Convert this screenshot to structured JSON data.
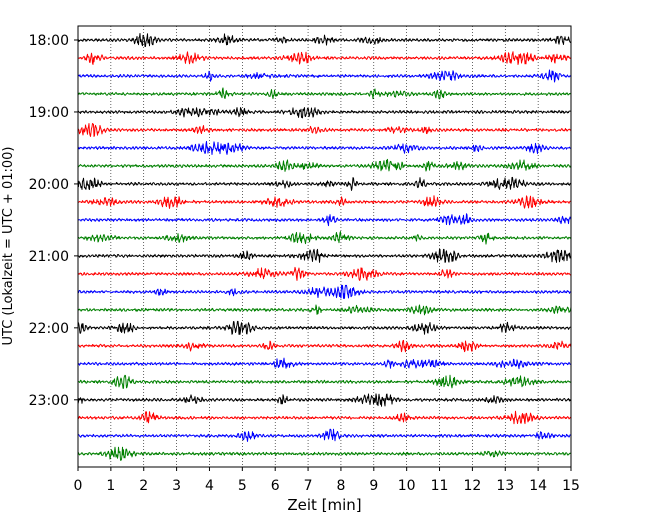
{
  "chart_data": {
    "type": "line",
    "title": "",
    "xlabel": "Zeit  [min]",
    "ylabel": "UTC (Lokalzeit = UTC + 01:00)",
    "xlim": [
      0,
      15
    ],
    "x_ticks": [
      0,
      1,
      2,
      3,
      4,
      5,
      6,
      7,
      8,
      9,
      10,
      11,
      12,
      13,
      14,
      15
    ],
    "y_tick_labels": [
      "18:00",
      "19:00",
      "20:00",
      "21:00",
      "22:00",
      "23:00"
    ],
    "y_tick_traces": [
      0,
      4,
      8,
      12,
      16,
      20
    ],
    "trace_interval_min": 15,
    "trace_count": 24,
    "grid": "vertical dotted at each minute",
    "colors": [
      "#000000",
      "#ff0000",
      "#0000ff",
      "#008000"
    ],
    "series": [
      {
        "start": "18:00"
      },
      {
        "start": "18:15"
      },
      {
        "start": "18:30"
      },
      {
        "start": "18:45"
      },
      {
        "start": "19:00"
      },
      {
        "start": "19:15"
      },
      {
        "start": "19:30"
      },
      {
        "start": "19:45"
      },
      {
        "start": "20:00"
      },
      {
        "start": "20:15"
      },
      {
        "start": "20:30"
      },
      {
        "start": "20:45"
      },
      {
        "start": "21:00"
      },
      {
        "start": "21:15"
      },
      {
        "start": "21:30"
      },
      {
        "start": "21:45"
      },
      {
        "start": "22:00"
      },
      {
        "start": "22:15"
      },
      {
        "start": "22:30"
      },
      {
        "start": "22:45"
      },
      {
        "start": "23:00"
      },
      {
        "start": "23:15"
      },
      {
        "start": "23:30"
      },
      {
        "start": "23:45"
      }
    ]
  }
}
